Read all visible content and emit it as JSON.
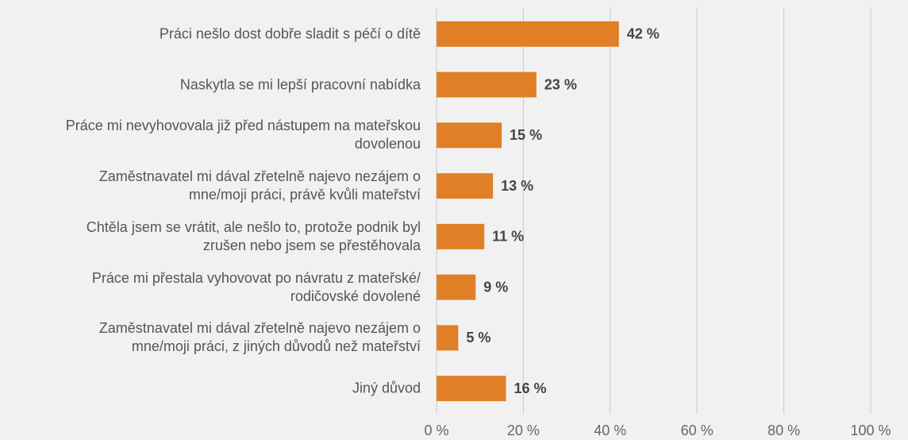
{
  "chart_data": {
    "type": "bar",
    "orientation": "horizontal",
    "categories": [
      "Práci nešlo dost dobře sladit s péčí o dítě",
      "Naskytla se mi lepší pracovní nabídka",
      "Práce mi nevyhovovala již před nástupem na mateřskou\ndovolenou",
      "Zaměstnavatel mi dával zřetelně najevo nezájem o\nmne/moji práci, právě kvůli mateřství",
      "Chtěla jsem se vrátit, ale nešlo to, protože podnik byl\nzrušen nebo jsem se přestěhovala",
      "Práce mi přestala vyhovovat po návratu z mateřské/\nrodičovské dovolené",
      "Zaměstnavatel mi dával zřetelně najevo nezájem o\nmne/moji práci, z jiných důvodů než mateřství",
      "Jiný důvod"
    ],
    "values": [
      42,
      23,
      15,
      13,
      11,
      9,
      5,
      16
    ],
    "value_labels": [
      "42 %",
      "23 %",
      "15 %",
      "13 %",
      "11 %",
      "9 %",
      "5 %",
      "16 %"
    ],
    "color": "#e07f26",
    "xlim": [
      0,
      100
    ],
    "xticks": [
      {
        "value": 0,
        "label": "0 %"
      },
      {
        "value": 20,
        "label": "20 %"
      },
      {
        "value": 40,
        "label": "40 %"
      },
      {
        "value": 60,
        "label": "60 %"
      },
      {
        "value": 80,
        "label": "80 %"
      },
      {
        "value": 100,
        "label": "100 %"
      }
    ],
    "grid": true
  }
}
